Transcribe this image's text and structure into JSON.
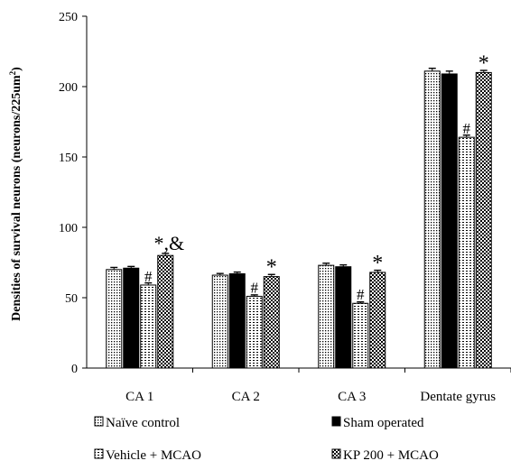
{
  "chart_data": {
    "type": "bar",
    "ylabel": "Densities of survival neurons (neurons/225um",
    "ylabel_sup": "2",
    "ylabel_close": ")",
    "ylim": [
      0,
      250
    ],
    "yticks": [
      "0",
      "50",
      "100",
      "150",
      "200",
      "250"
    ],
    "grid": false,
    "legend_position": "bottom",
    "categories": [
      "CA 1",
      "CA 2",
      "CA 3",
      "Dentate gyrus"
    ],
    "series": [
      {
        "name": "Naïve control",
        "values": [
          70,
          66,
          73,
          211
        ],
        "errors": [
          1.5,
          1.2,
          1.5,
          2
        ],
        "pattern": "dots"
      },
      {
        "name": "Sham operated",
        "values": [
          71,
          67,
          72,
          209
        ],
        "errors": [
          1.2,
          1.2,
          1.3,
          2
        ],
        "pattern": "solid"
      },
      {
        "name": "Vehicle + MCAO",
        "values": [
          59,
          51,
          46,
          164
        ],
        "errors": [
          1.5,
          1,
          1,
          1.5
        ],
        "pattern": "hlines"
      },
      {
        "name": "KP 200  + MCAO",
        "values": [
          80,
          65,
          68,
          210
        ],
        "errors": [
          1.5,
          1.5,
          1.5,
          1.5
        ],
        "pattern": "checker"
      }
    ],
    "annotations": [
      {
        "category": 0,
        "series": 2,
        "text": "#"
      },
      {
        "category": 0,
        "series": 3,
        "text": "*,&"
      },
      {
        "category": 1,
        "series": 2,
        "text": "#"
      },
      {
        "category": 1,
        "series": 3,
        "text": "*"
      },
      {
        "category": 2,
        "series": 2,
        "text": "#"
      },
      {
        "category": 2,
        "series": 3,
        "text": "*"
      },
      {
        "category": 3,
        "series": 2,
        "text": "#"
      },
      {
        "category": 3,
        "series": 3,
        "text": "*"
      }
    ]
  }
}
